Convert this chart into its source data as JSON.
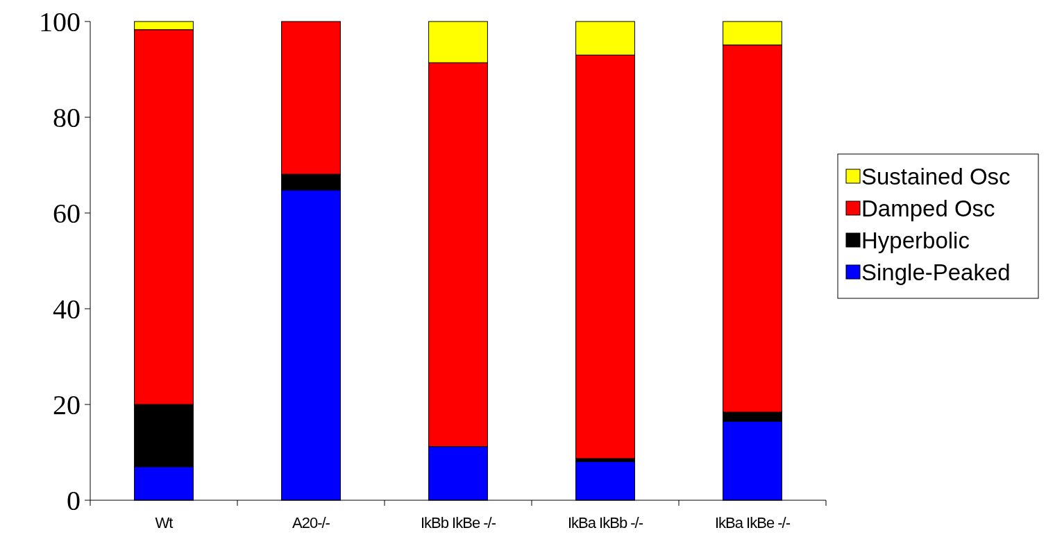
{
  "chart_data": {
    "type": "bar",
    "stacked": true,
    "categories": [
      "Wt",
      "A20-/-",
      "IkBb IkBe -/-",
      "IkBa IkBb -/-",
      "IkBa IkBe -/-"
    ],
    "series": [
      {
        "name": "Single-Peaked",
        "color": "#0000ff",
        "values": [
          7,
          64.8,
          11.2,
          8.1,
          16.5
        ]
      },
      {
        "name": "Hyperbolic",
        "color": "#000000",
        "values": [
          13,
          3.3,
          0,
          0.6,
          1.9
        ]
      },
      {
        "name": "Damped Osc",
        "color": "#ff0000",
        "values": [
          78.3,
          31.9,
          80.2,
          84.3,
          76.7
        ]
      },
      {
        "name": "Sustained Osc",
        "color": "#ffff00",
        "values": [
          1.7,
          0,
          8.6,
          7,
          4.9
        ]
      }
    ],
    "ylim": [
      0,
      100
    ],
    "yticks": [
      0,
      20,
      40,
      60,
      80,
      100
    ],
    "grid": false,
    "legend": "right"
  }
}
